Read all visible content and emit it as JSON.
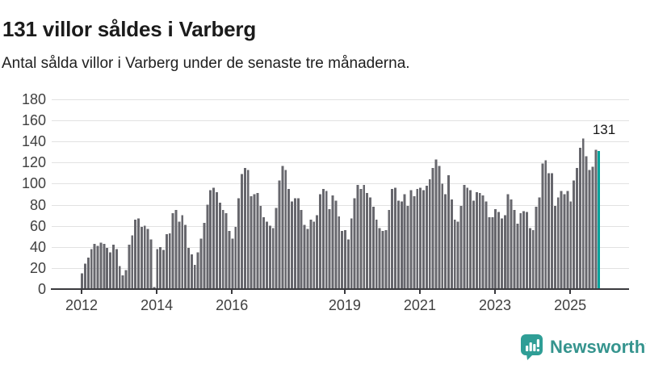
{
  "header": {
    "title": "131 villor såldes i Varberg",
    "subtitle": "Antal sålda villor i Varberg under de senaste tre månaderna."
  },
  "chart_data": {
    "type": "bar",
    "title": "131 villor såldes i Varberg",
    "xlabel": "",
    "ylabel": "",
    "x_monthly_start": "2012-01",
    "x_monthly_end": "2025-10",
    "values": [
      15,
      24,
      30,
      38,
      43,
      41,
      44,
      43,
      39,
      35,
      42,
      38,
      22,
      13,
      18,
      42,
      51,
      66,
      67,
      59,
      60,
      57,
      47,
      2,
      38,
      40,
      37,
      52,
      53,
      72,
      75,
      64,
      70,
      61,
      39,
      33,
      23,
      35,
      48,
      63,
      80,
      94,
      96,
      92,
      82,
      75,
      72,
      55,
      48,
      59,
      86,
      109,
      115,
      113,
      88,
      90,
      91,
      79,
      68,
      64,
      60,
      58,
      77,
      103,
      117,
      113,
      95,
      83,
      86,
      86,
      75,
      61,
      57,
      66,
      64,
      70,
      90,
      95,
      93,
      76,
      89,
      84,
      69,
      55,
      56,
      47,
      67,
      86,
      99,
      95,
      99,
      91,
      87,
      78,
      66,
      58,
      55,
      56,
      75,
      95,
      96,
      84,
      83,
      90,
      79,
      94,
      88,
      95,
      96,
      94,
      98,
      104,
      115,
      123,
      117,
      100,
      90,
      108,
      85,
      66,
      64,
      79,
      99,
      96,
      94,
      84,
      92,
      91,
      89,
      83,
      68,
      68,
      76,
      73,
      67,
      70,
      90,
      85,
      75,
      62,
      72,
      74,
      73,
      58,
      56,
      78,
      87,
      119,
      122,
      110,
      110,
      79,
      87,
      93,
      90,
      93,
      83,
      103,
      115,
      134,
      143,
      126,
      113,
      116,
      132,
      131
    ],
    "highlight_last": true,
    "annotation": {
      "text": "131"
    },
    "yticks": [
      0,
      20,
      40,
      60,
      80,
      100,
      120,
      140,
      160,
      180
    ],
    "ylim": [
      0,
      180
    ],
    "xticks": [
      2012,
      2014,
      2016,
      2019,
      2021,
      2023,
      2025
    ],
    "grid": true,
    "legend": "none",
    "colors": {
      "bar": "#67676d",
      "highlight": "#00a49d",
      "grid": "#e2e2e2",
      "axis": "#3a3a3e",
      "tick_text": "#3f3f3f"
    }
  },
  "footer": {
    "brand": "Newsworthy",
    "logo_icon": "newsworthy-speech-bubble-chart-icon",
    "brand_color": "#35948e"
  }
}
